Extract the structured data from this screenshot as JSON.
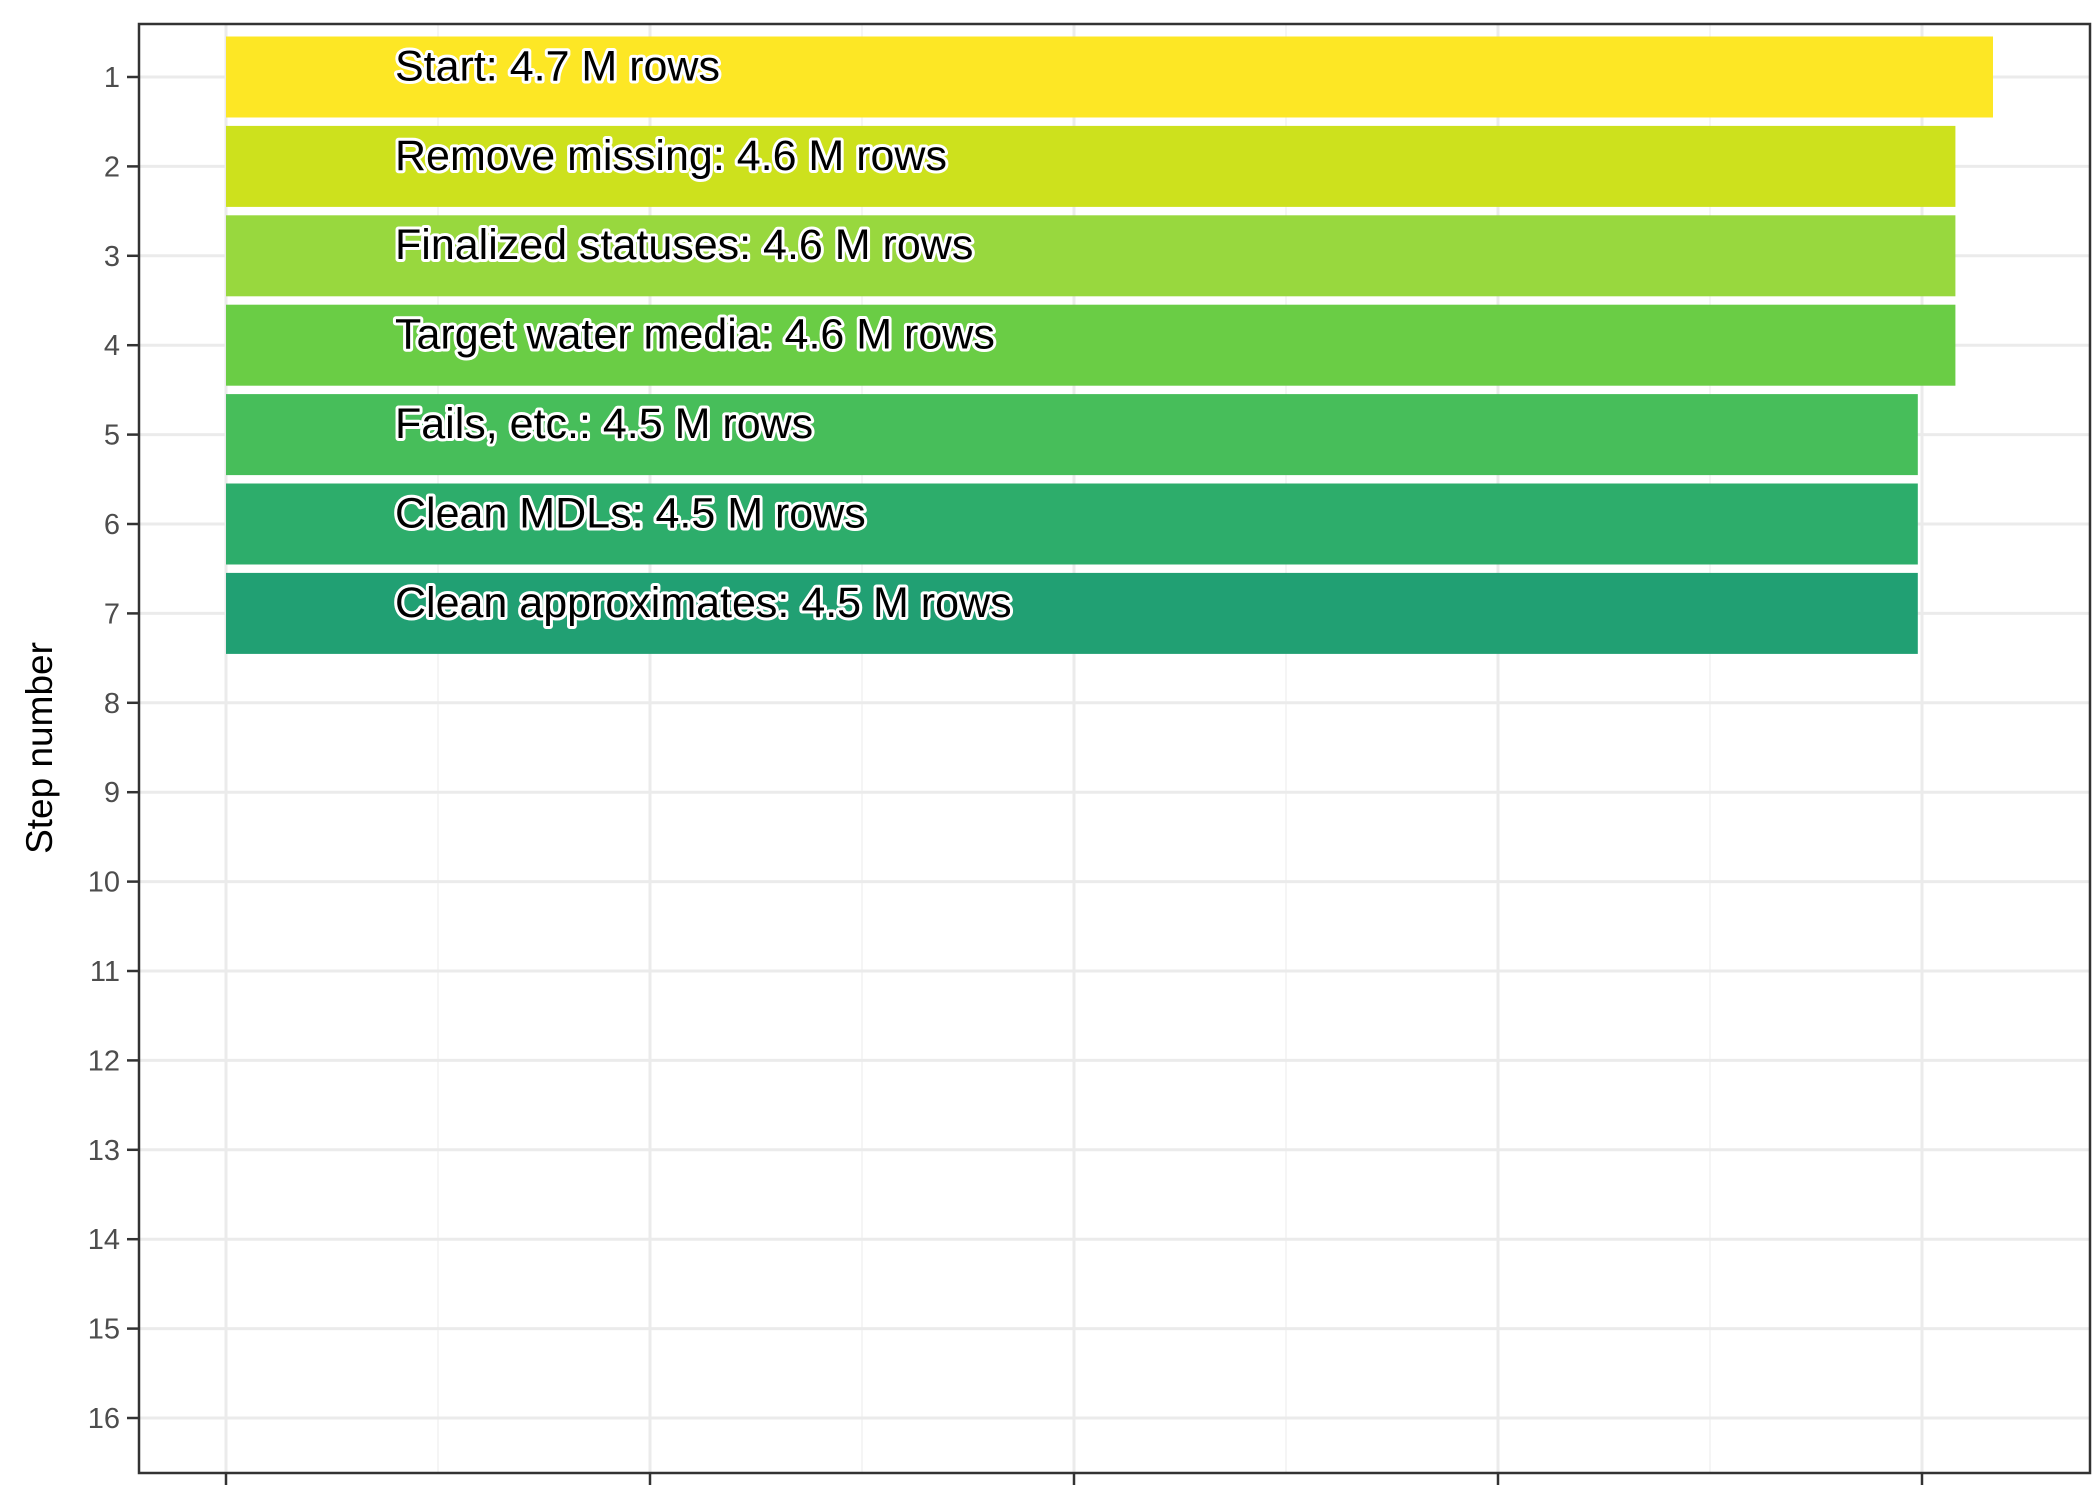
{
  "chart_data": {
    "type": "bar",
    "orientation": "horizontal",
    "title": "",
    "xlabel": "",
    "ylabel": "Step number",
    "x_tick_labels": [
      "",
      "",
      "",
      "",
      ""
    ],
    "y_categories": [
      "1",
      "2",
      "3",
      "4",
      "5",
      "6",
      "7",
      "8",
      "9",
      "10",
      "11",
      "12",
      "13",
      "14",
      "15",
      "16"
    ],
    "bars": [
      {
        "step": 1,
        "label": "Start:  4.7 M rows",
        "value": 4.7,
        "color": "#FDE725"
      },
      {
        "step": 2,
        "label": "Remove missing:  4.6 M rows",
        "value": 4.6,
        "color": "#CDE11D"
      },
      {
        "step": 3,
        "label": "Finalized statuses:  4.6 M rows",
        "value": 4.6,
        "color": "#98D83E"
      },
      {
        "step": 4,
        "label": "Target water media:  4.6 M rows",
        "value": 4.6,
        "color": "#6ACD45"
      },
      {
        "step": 5,
        "label": "Fails, etc.:  4.5 M rows",
        "value": 4.5,
        "color": "#47BE5A"
      },
      {
        "step": 6,
        "label": "Clean MDLs:  4.5 M rows",
        "value": 4.5,
        "color": "#2DAD6B"
      },
      {
        "step": 7,
        "label": "Clean approximates:  4.5 M rows",
        "value": 4.5,
        "color": "#21A073"
      }
    ],
    "grid": true,
    "legend": "none",
    "colors": {
      "panel_border": "#333333",
      "grid_major": "#EBEBEB",
      "tick": "#333333",
      "text": "#4d4d4d"
    }
  }
}
